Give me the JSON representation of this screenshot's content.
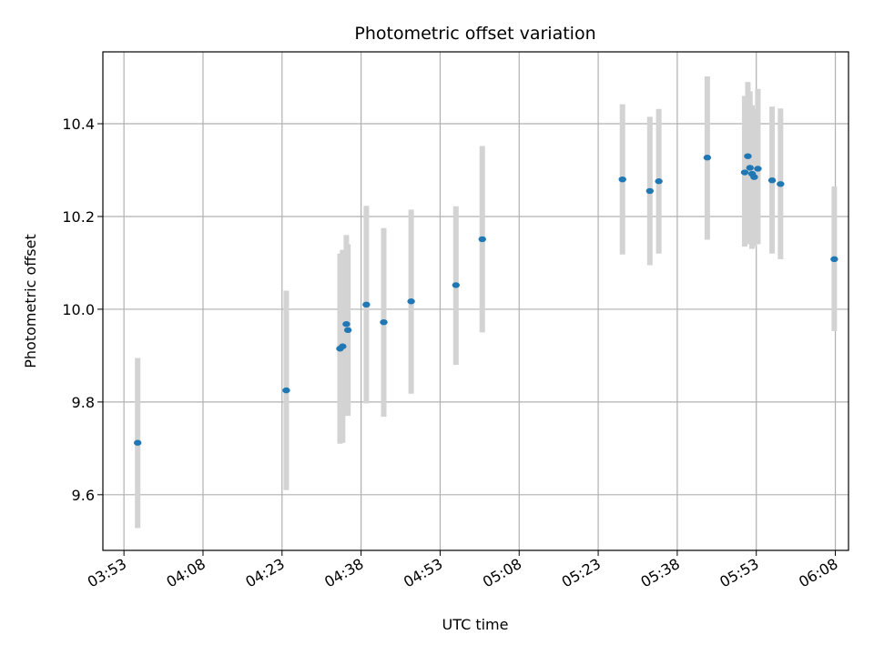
{
  "chart_data": {
    "type": "scatter",
    "title": "Photometric offset variation",
    "xlabel": "UTC time",
    "ylabel": "Photometric offset",
    "x_ticks": [
      "03:53",
      "04:08",
      "04:23",
      "04:38",
      "04:53",
      "05:08",
      "05:23",
      "05:38",
      "05:53",
      "06:08"
    ],
    "xlim": [
      "03:49",
      "06:10.5"
    ],
    "y_ticks": [
      9.6,
      9.8,
      10.0,
      10.2,
      10.4
    ],
    "ylim": [
      9.48,
      10.555
    ],
    "grid": true,
    "colors": {
      "marker": "#1f77b4",
      "errorbar": "#d3d3d3"
    },
    "points": [
      {
        "x": "03:55.6",
        "y": 9.712,
        "ylow": 9.528,
        "yhigh": 9.895
      },
      {
        "x": "04:23.8",
        "y": 9.825,
        "ylow": 9.61,
        "yhigh": 10.04
      },
      {
        "x": "04:34.0",
        "y": 9.915,
        "ylow": 9.71,
        "yhigh": 10.12
      },
      {
        "x": "04:34.5",
        "y": 9.92,
        "ylow": 9.712,
        "yhigh": 10.128
      },
      {
        "x": "04:35.2",
        "y": 9.968,
        "ylow": 9.775,
        "yhigh": 10.16
      },
      {
        "x": "04:35.5",
        "y": 9.955,
        "ylow": 9.77,
        "yhigh": 10.14
      },
      {
        "x": "04:39.0",
        "y": 10.01,
        "ylow": 9.797,
        "yhigh": 10.223
      },
      {
        "x": "04:42.3",
        "y": 9.972,
        "ylow": 9.768,
        "yhigh": 10.175
      },
      {
        "x": "04:47.5",
        "y": 10.017,
        "ylow": 9.818,
        "yhigh": 10.215
      },
      {
        "x": "04:56.0",
        "y": 10.052,
        "ylow": 9.88,
        "yhigh": 10.222
      },
      {
        "x": "05:01.0",
        "y": 10.151,
        "ylow": 9.95,
        "yhigh": 10.352
      },
      {
        "x": "05:27.6",
        "y": 10.28,
        "ylow": 10.118,
        "yhigh": 10.442
      },
      {
        "x": "05:32.8",
        "y": 10.255,
        "ylow": 10.095,
        "yhigh": 10.415
      },
      {
        "x": "05:34.5",
        "y": 10.276,
        "ylow": 10.12,
        "yhigh": 10.432
      },
      {
        "x": "05:43.7",
        "y": 10.327,
        "ylow": 10.15,
        "yhigh": 10.502
      },
      {
        "x": "05:50.8",
        "y": 10.295,
        "ylow": 10.135,
        "yhigh": 10.46
      },
      {
        "x": "05:51.4",
        "y": 10.33,
        "ylow": 10.17,
        "yhigh": 10.49
      },
      {
        "x": "05:51.8",
        "y": 10.305,
        "ylow": 10.14,
        "yhigh": 10.47
      },
      {
        "x": "05:52.2",
        "y": 10.292,
        "ylow": 10.13,
        "yhigh": 10.44
      },
      {
        "x": "05:52.6",
        "y": 10.285,
        "ylow": 10.136,
        "yhigh": 10.432
      },
      {
        "x": "05:53.3",
        "y": 10.303,
        "ylow": 10.14,
        "yhigh": 10.475
      },
      {
        "x": "05:56.0",
        "y": 10.278,
        "ylow": 10.12,
        "yhigh": 10.437
      },
      {
        "x": "05:57.6",
        "y": 10.27,
        "ylow": 10.108,
        "yhigh": 10.433
      },
      {
        "x": "06:07.8",
        "y": 10.108,
        "ylow": 9.953,
        "yhigh": 10.265
      }
    ]
  }
}
